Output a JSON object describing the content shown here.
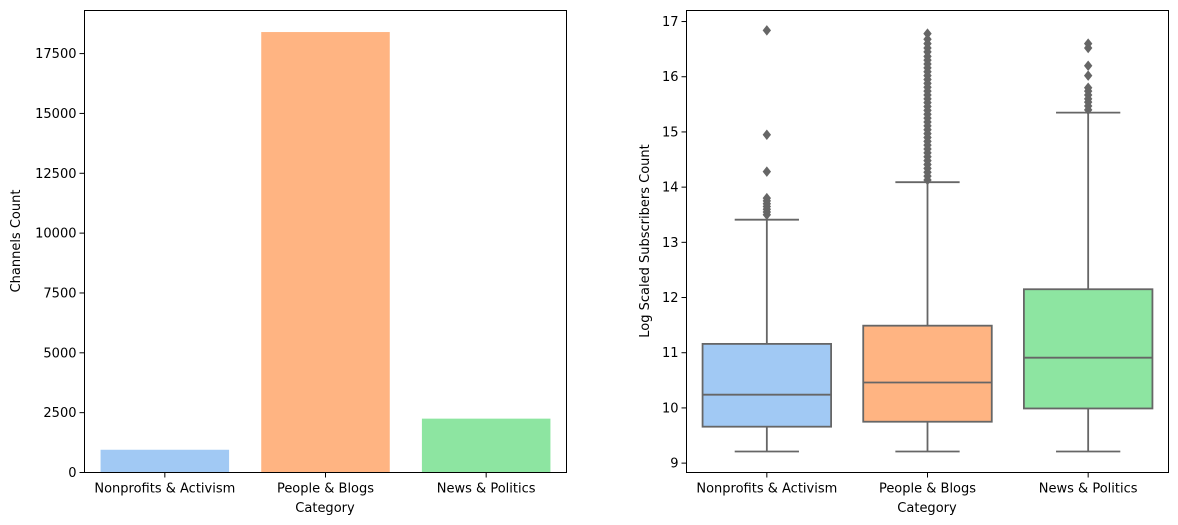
{
  "chart_data": [
    {
      "type": "bar",
      "xlabel": "Category",
      "ylabel": "Channels Count",
      "categories": [
        "Nonprofits & Activism",
        "People & Blogs",
        "News & Politics"
      ],
      "values": [
        950,
        18400,
        2250
      ],
      "ylim": [
        0,
        19300
      ],
      "yticks": [
        0,
        2500,
        5000,
        7500,
        10000,
        12500,
        15000,
        17500
      ],
      "ytick_labels": [
        "0",
        "2500",
        "5000",
        "7500",
        "10000",
        "12500",
        "15000",
        "17500"
      ],
      "colors": [
        "#a1c9f4",
        "#ffb482",
        "#8de5a1"
      ],
      "grid": false
    },
    {
      "type": "box",
      "xlabel": "Category",
      "ylabel": "Log Scaled Subscribers Count",
      "categories": [
        "Nonprofits & Activism",
        "People & Blogs",
        "News & Politics"
      ],
      "ylim": [
        8.83,
        17.2
      ],
      "yticks": [
        9,
        10,
        11,
        12,
        13,
        14,
        15,
        16,
        17
      ],
      "ytick_labels": [
        "9",
        "10",
        "11",
        "12",
        "13",
        "14",
        "15",
        "16",
        "17"
      ],
      "colors": [
        "#a1c9f4",
        "#ffb482",
        "#8de5a1"
      ],
      "line_color": "#666666",
      "grid": false,
      "boxes": [
        {
          "category": "Nonprofits & Activism",
          "whisker_low": 9.21,
          "q1": 9.66,
          "median": 10.24,
          "q3": 11.16,
          "whisker_high": 13.41,
          "outliers": [
            13.5,
            13.55,
            13.6,
            13.65,
            13.7,
            13.75,
            13.8,
            14.28,
            14.95,
            16.84
          ]
        },
        {
          "category": "People & Blogs",
          "whisker_low": 9.21,
          "q1": 9.75,
          "median": 10.46,
          "q3": 11.49,
          "whisker_high": 14.09,
          "outliers": [
            14.13,
            14.2,
            14.27,
            14.34,
            14.41,
            14.48,
            14.55,
            14.62,
            14.69,
            14.76,
            14.83,
            14.9,
            14.97,
            15.04,
            15.11,
            15.18,
            15.25,
            15.32,
            15.39,
            15.46,
            15.53,
            15.6,
            15.67,
            15.74,
            15.81,
            15.88,
            15.95,
            16.02,
            16.09,
            16.16,
            16.23,
            16.3,
            16.37,
            16.45,
            16.52,
            16.6,
            16.68,
            16.78
          ]
        },
        {
          "category": "News & Politics",
          "whisker_low": 9.21,
          "q1": 9.99,
          "median": 10.91,
          "q3": 12.15,
          "whisker_high": 15.35,
          "outliers": [
            15.4,
            15.47,
            15.54,
            15.6,
            15.67,
            15.74,
            15.8,
            16.02,
            16.2,
            16.52,
            16.6
          ]
        }
      ]
    }
  ]
}
